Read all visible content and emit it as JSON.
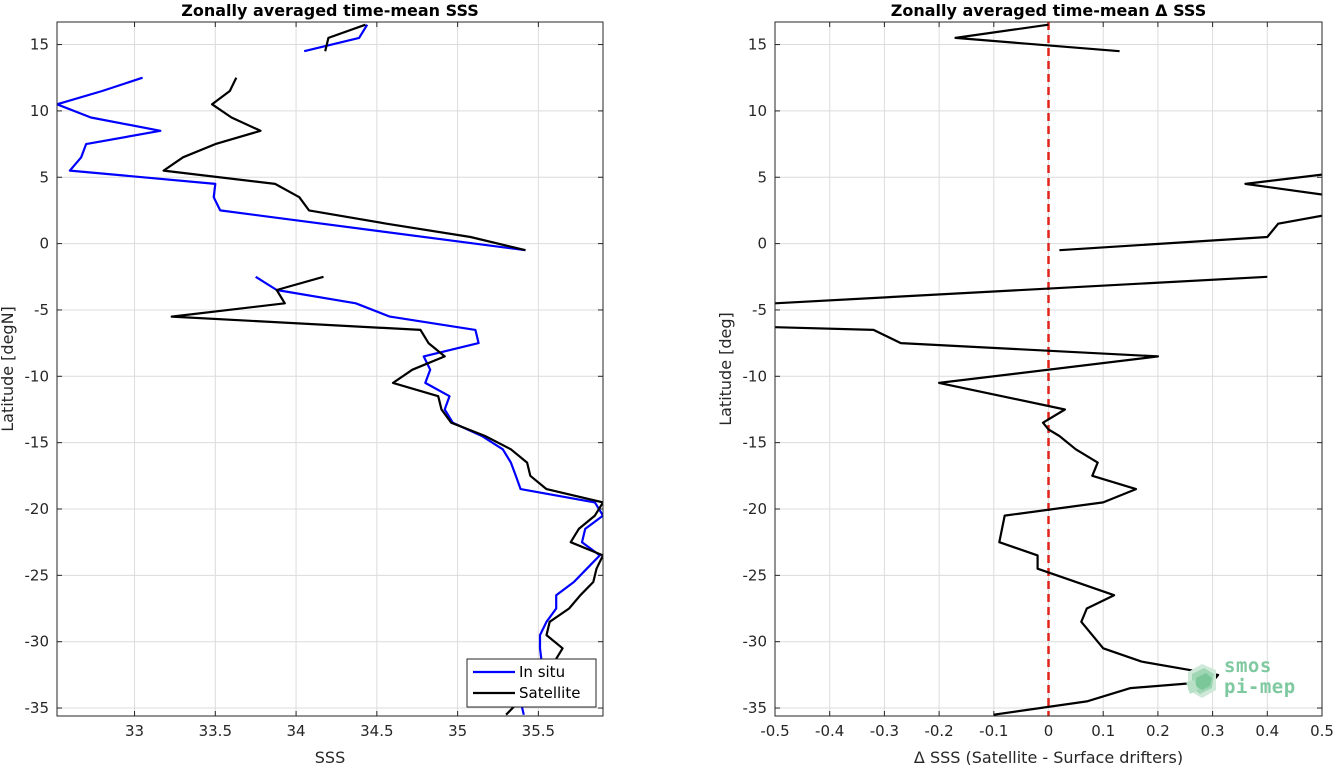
{
  "chart_data": [
    {
      "type": "line",
      "title": "Zonally averaged time-mean SSS",
      "xlabel": "SSS",
      "ylabel": "Latitude [degN]",
      "xlim": [
        32.52,
        35.9
      ],
      "ylim": [
        -35.6,
        16.7
      ],
      "xticks": [
        33,
        33.5,
        34,
        34.5,
        35,
        35.5
      ],
      "yticks": [
        15,
        10,
        5,
        0,
        -5,
        -10,
        -15,
        -20,
        -25,
        -30,
        -35
      ],
      "grid": true,
      "legend": "bottom-right",
      "series": [
        {
          "name": "In situ",
          "color": "#0000ff",
          "segments": [
            [
              [
                34.05,
                14.5
              ],
              [
                34.39,
                15.5
              ],
              [
                34.44,
                16.5
              ]
            ],
            [
              [
                33.05,
                12.5
              ],
              [
                32.8,
                11.5
              ],
              [
                32.52,
                10.5
              ],
              [
                32.73,
                9.5
              ],
              [
                33.16,
                8.5
              ],
              [
                32.7,
                7.5
              ],
              [
                32.67,
                6.5
              ],
              [
                32.6,
                5.5
              ],
              [
                33.5,
                4.5
              ],
              [
                33.49,
                3.5
              ],
              [
                33.53,
                2.5
              ],
              [
                35.42,
                -0.5
              ]
            ],
            [
              [
                33.75,
                -2.5
              ],
              [
                33.88,
                -3.5
              ],
              [
                34.37,
                -4.5
              ],
              [
                34.58,
                -5.5
              ],
              [
                35.11,
                -6.5
              ],
              [
                35.13,
                -7.5
              ],
              [
                34.79,
                -8.5
              ],
              [
                34.83,
                -9.5
              ],
              [
                34.8,
                -10.5
              ],
              [
                34.95,
                -11.5
              ],
              [
                34.92,
                -12.5
              ],
              [
                34.97,
                -13.5
              ],
              [
                35.15,
                -14.5
              ],
              [
                35.28,
                -15.5
              ],
              [
                35.33,
                -16.5
              ],
              [
                35.36,
                -17.5
              ],
              [
                35.39,
                -18.5
              ],
              [
                35.85,
                -19.5
              ],
              [
                35.9,
                -20.5
              ],
              [
                35.79,
                -21.5
              ],
              [
                35.77,
                -22.5
              ],
              [
                35.88,
                -23.5
              ],
              [
                35.8,
                -24.5
              ],
              [
                35.72,
                -25.5
              ],
              [
                35.61,
                -26.5
              ],
              [
                35.61,
                -27.5
              ],
              [
                35.55,
                -28.5
              ],
              [
                35.51,
                -29.5
              ],
              [
                35.51,
                -30.5
              ],
              [
                35.52,
                -31.5
              ],
              [
                35.35,
                -32.5
              ],
              [
                35.36,
                -33.5
              ],
              [
                35.39,
                -34.5
              ],
              [
                35.41,
                -35.5
              ]
            ]
          ]
        },
        {
          "name": "Satellite",
          "color": "#000000",
          "segments": [
            [
              [
                34.18,
                14.5
              ],
              [
                34.2,
                15.5
              ],
              [
                34.43,
                16.5
              ]
            ],
            [
              [
                33.63,
                12.5
              ],
              [
                33.59,
                11.5
              ],
              [
                33.48,
                10.5
              ],
              [
                33.6,
                9.5
              ],
              [
                33.78,
                8.5
              ],
              [
                33.5,
                7.5
              ],
              [
                33.3,
                6.5
              ],
              [
                33.18,
                5.5
              ],
              [
                33.87,
                4.5
              ],
              [
                34.02,
                3.5
              ],
              [
                34.08,
                2.5
              ],
              [
                34.56,
                1.5
              ],
              [
                35.08,
                0.5
              ],
              [
                35.42,
                -0.5
              ]
            ],
            [
              [
                34.17,
                -2.5
              ],
              [
                33.88,
                -3.5
              ],
              [
                33.93,
                -4.5
              ],
              [
                33.23,
                -5.5
              ],
              [
                34.77,
                -6.5
              ],
              [
                34.82,
                -7.5
              ],
              [
                34.92,
                -8.5
              ],
              [
                34.72,
                -9.5
              ],
              [
                34.6,
                -10.5
              ],
              [
                34.88,
                -11.5
              ],
              [
                34.9,
                -12.5
              ],
              [
                34.96,
                -13.5
              ],
              [
                35.17,
                -14.5
              ],
              [
                35.33,
                -15.5
              ],
              [
                35.43,
                -16.5
              ],
              [
                35.45,
                -17.5
              ],
              [
                35.55,
                -18.5
              ],
              [
                35.9,
                -19.5
              ],
              [
                35.85,
                -20.5
              ],
              [
                35.75,
                -21.5
              ],
              [
                35.7,
                -22.5
              ],
              [
                35.9,
                -23.5
              ],
              [
                35.86,
                -24.5
              ],
              [
                35.84,
                -25.5
              ],
              [
                35.76,
                -26.5
              ],
              [
                35.69,
                -27.5
              ],
              [
                35.57,
                -28.5
              ],
              [
                35.55,
                -29.5
              ],
              [
                35.65,
                -30.5
              ],
              [
                35.6,
                -31.5
              ],
              [
                35.6,
                -32.5
              ],
              [
                35.55,
                -33.5
              ],
              [
                35.38,
                -34.5
              ],
              [
                35.3,
                -35.5
              ]
            ]
          ]
        }
      ]
    },
    {
      "type": "line",
      "title": "Zonally averaged time-mean Δ SSS",
      "xlabel": "Δ SSS (Satellite - Surface drifters)",
      "ylabel": "Latitude [deg]",
      "xlim": [
        -0.5,
        0.5
      ],
      "ylim": [
        -35.6,
        16.7
      ],
      "xticks": [
        -0.5,
        -0.4,
        -0.3,
        -0.2,
        -0.1,
        0,
        0.1,
        0.2,
        0.3,
        0.4,
        0.5
      ],
      "yticks": [
        15,
        10,
        5,
        0,
        -5,
        -10,
        -15,
        -20,
        -25,
        -30,
        -35
      ],
      "grid": true,
      "reference_line": {
        "x": 0,
        "color": "#e0241a",
        "style": "dashed"
      },
      "series": [
        {
          "name": "",
          "color": "#000000",
          "segments": [
            [
              [
                0.13,
                14.5
              ],
              [
                -0.17,
                15.5
              ],
              [
                0.0,
                16.5
              ]
            ],
            [
              [
                0.5,
                5.2
              ],
              [
                0.36,
                4.5
              ],
              [
                0.5,
                3.7
              ]
            ],
            [
              [
                0.02,
                -0.5
              ],
              [
                0.4,
                0.5
              ],
              [
                0.42,
                1.5
              ],
              [
                0.5,
                2.1
              ]
            ],
            [
              [
                0.4,
                -2.5
              ],
              [
                -0.5,
                -4.5
              ]
            ],
            [
              [
                -0.5,
                -6.3
              ],
              [
                -0.32,
                -6.5
              ],
              [
                -0.27,
                -7.5
              ],
              [
                0.2,
                -8.5
              ],
              [
                -0.2,
                -10.5
              ],
              [
                0.03,
                -12.5
              ],
              [
                -0.01,
                -13.5
              ],
              [
                0.0,
                -14.0
              ],
              [
                0.02,
                -14.5
              ],
              [
                0.05,
                -15.5
              ],
              [
                0.09,
                -16.5
              ],
              [
                0.08,
                -17.5
              ],
              [
                0.16,
                -18.5
              ],
              [
                0.1,
                -19.5
              ],
              [
                -0.08,
                -20.5
              ],
              [
                -0.09,
                -22.5
              ],
              [
                -0.02,
                -23.5
              ],
              [
                -0.02,
                -24.5
              ],
              [
                0.12,
                -26.5
              ],
              [
                0.07,
                -27.5
              ],
              [
                0.06,
                -28.5
              ],
              [
                0.1,
                -30.5
              ],
              [
                0.17,
                -31.5
              ],
              [
                0.31,
                -32.5
              ],
              [
                0.3,
                -33.0
              ],
              [
                0.15,
                -33.5
              ],
              [
                0.07,
                -34.5
              ],
              [
                -0.1,
                -35.5
              ]
            ]
          ]
        }
      ]
    }
  ],
  "legend": {
    "items": [
      {
        "label": "In situ",
        "color": "#0000ff"
      },
      {
        "label": "Satellite",
        "color": "#000000"
      }
    ]
  },
  "logo": {
    "line1": "smos",
    "line2": "pi-mep"
  }
}
